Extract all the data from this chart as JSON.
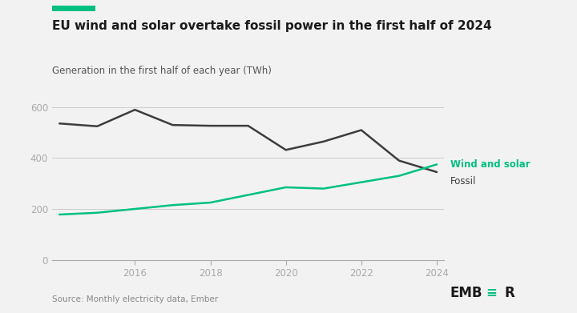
{
  "title": "EU wind and solar overtake fossil power in the first half of 2024",
  "subtitle": "Generation in the first half of each year (TWh)",
  "source": "Source: Monthly electricity data, Ember",
  "years": [
    2014,
    2015,
    2016,
    2017,
    2018,
    2019,
    2020,
    2021,
    2022,
    2023,
    2024
  ],
  "fossil": [
    536,
    525,
    590,
    530,
    527,
    527,
    432,
    465,
    510,
    390,
    345
  ],
  "wind_solar": [
    178,
    185,
    200,
    215,
    225,
    255,
    285,
    280,
    305,
    330,
    375
  ],
  "fossil_color": "#3d3d3d",
  "wind_solar_color": "#00c080",
  "background_color": "#f2f2f2",
  "top_bar_color": "#00c080",
  "ylim": [
    0,
    640
  ],
  "yticks": [
    0,
    200,
    400,
    600
  ],
  "xticks": [
    2016,
    2018,
    2020,
    2022,
    2024
  ],
  "legend_wind_solar": "Wind and solar",
  "legend_fossil": "Fossil",
  "line_width": 1.8,
  "grid_color": "#cccccc",
  "tick_color": "#aaaaaa",
  "ember_color": "#1a1a1a",
  "title_fontsize": 11,
  "subtitle_fontsize": 8.5,
  "tick_fontsize": 8.5,
  "source_fontsize": 7.5
}
